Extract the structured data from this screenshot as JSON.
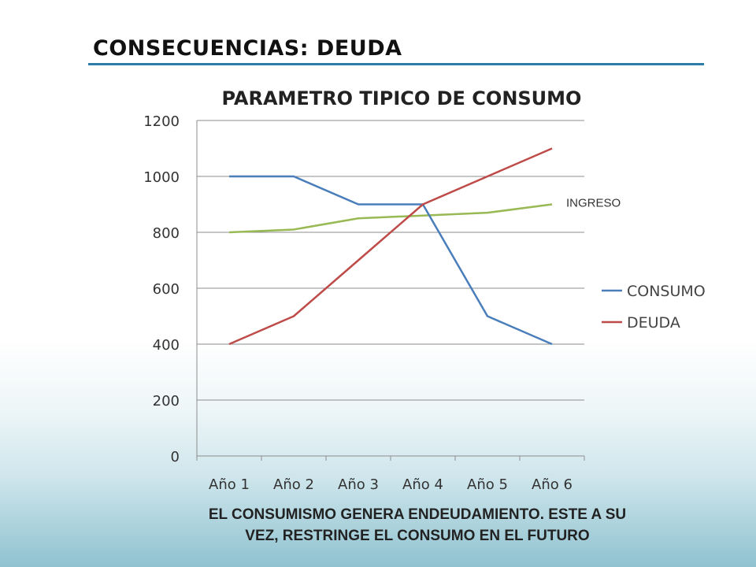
{
  "slide": {
    "title": "CONSECUENCIAS:  DEUDA",
    "footer_line1": "EL CONSUMISMO GENERA ENDEUDAMIENTO. ESTE A SU",
    "footer_line2": "VEZ, RESTRINGE EL CONSUMO EN EL FUTURO",
    "accent_color": "#2e7ba6"
  },
  "chart_data": {
    "type": "line",
    "title": "PARAMETRO TIPICO DE CONSUMO",
    "categories": [
      "Año 1",
      "Año 2",
      "Año 3",
      "Año 4",
      "Año 5",
      "Año 6"
    ],
    "series": [
      {
        "name": "CONSUMO",
        "color": "#4a7ebb",
        "values": [
          1000,
          1000,
          900,
          900,
          500,
          400
        ]
      },
      {
        "name": "DEUDA",
        "color": "#be4b48",
        "values": [
          400,
          500,
          700,
          900,
          1000,
          1100
        ]
      },
      {
        "name": "INGRESO",
        "color": "#98b954",
        "values": [
          800,
          810,
          850,
          860,
          870,
          900
        ]
      }
    ],
    "y_ticks": [
      0,
      200,
      400,
      600,
      800,
      1000,
      1200
    ],
    "ylim": [
      0,
      1200
    ],
    "grid": true,
    "legend_position": "right",
    "legend_entries": [
      "CONSUMO",
      "DEUDA"
    ],
    "annotations": [
      {
        "text": "INGRESO",
        "series": "INGRESO"
      }
    ]
  }
}
